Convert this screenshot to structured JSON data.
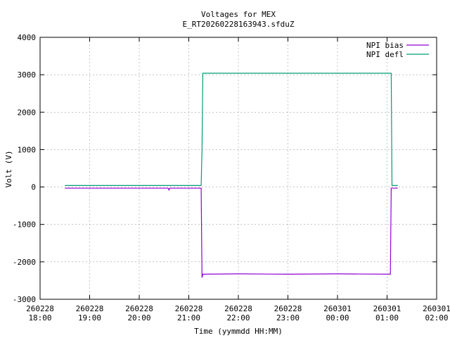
{
  "chart_data": {
    "type": "line",
    "title": "Voltages for MEX",
    "subtitle": "E_RT20260228163943.sfduZ",
    "x_label": "Time (yymmdd HH:MM)",
    "y_label": "Volt (V)",
    "x": [
      "260228 18:30",
      "260228 20:35",
      "260228 20:36",
      "260228 20:37",
      "260228 21:15",
      "260228 21:16",
      "260228 21:17",
      "260228 22:00",
      "260228 23:00",
      "260301 00:00",
      "260301 01:04",
      "260301 01:05",
      "260301 01:06",
      "260301 01:13"
    ],
    "series": [
      {
        "name": "NPI bias",
        "color": "#9400d3",
        "values": [
          -30,
          -30,
          -80,
          -30,
          -30,
          -2420,
          -2330,
          -2320,
          -2330,
          -2320,
          -2330,
          -30,
          -30,
          -30
        ]
      },
      {
        "name": "NPI defl",
        "color": "#009e73",
        "values": [
          40,
          40,
          40,
          40,
          40,
          1000,
          3040,
          3040,
          3040,
          3040,
          3040,
          3040,
          40,
          40
        ]
      }
    ],
    "xlim": [
      "260228 18:00",
      "260301 02:00"
    ],
    "xticks": [
      {
        "value": "260228 18:00",
        "label": [
          "260228",
          "18:00"
        ]
      },
      {
        "value": "260228 19:00",
        "label": [
          "260228",
          "19:00"
        ]
      },
      {
        "value": "260228 20:00",
        "label": [
          "260228",
          "20:00"
        ]
      },
      {
        "value": "260228 21:00",
        "label": [
          "260228",
          "21:00"
        ]
      },
      {
        "value": "260228 22:00",
        "label": [
          "260228",
          "22:00"
        ]
      },
      {
        "value": "260228 23:00",
        "label": [
          "260228",
          "23:00"
        ]
      },
      {
        "value": "260301 00:00",
        "label": [
          "260301",
          "00:00"
        ]
      },
      {
        "value": "260301 01:00",
        "label": [
          "260301",
          "01:00"
        ]
      },
      {
        "value": "260301 02:00",
        "label": [
          "260301",
          "02:00"
        ]
      }
    ],
    "ylim": [
      -3000,
      4000
    ],
    "yticks": [
      -3000,
      -2000,
      -1000,
      0,
      1000,
      2000,
      3000,
      4000
    ],
    "grid": true,
    "legend": "top-right"
  }
}
